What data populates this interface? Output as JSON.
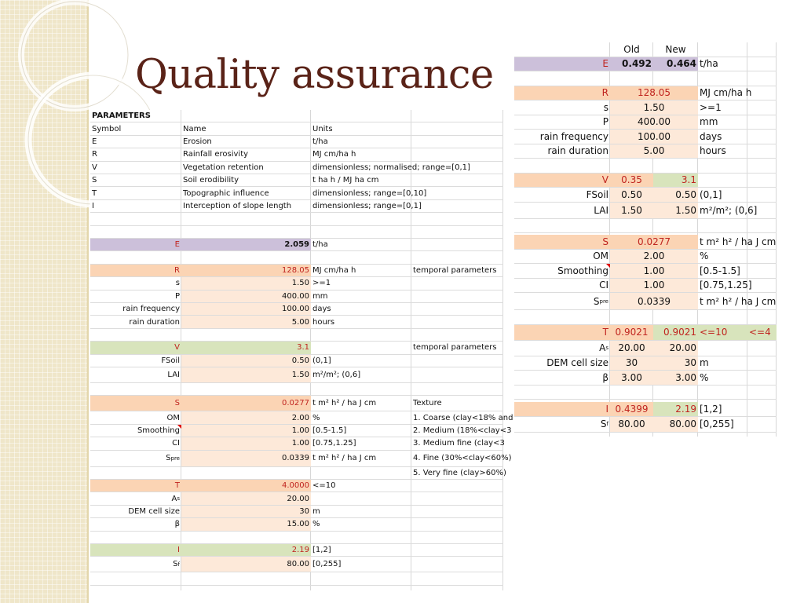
{
  "slide": {
    "title": "Quality assurance"
  },
  "left_table": {
    "header": "PARAMETERS",
    "col_headers": [
      "Symbol",
      "Name",
      "Units"
    ],
    "definitions": [
      {
        "symbol": "E",
        "name": "Erosion",
        "units": "t/ha"
      },
      {
        "symbol": "R",
        "name": "Rainfall erosivity",
        "units": "MJ cm/ha h"
      },
      {
        "symbol": "V",
        "name": "Vegetation retention",
        "units": "dimensionless; normalised; range=[0,1]"
      },
      {
        "symbol": "S",
        "name": "Soil erodibility",
        "units": "t ha h / MJ ha cm"
      },
      {
        "symbol": "T",
        "name": "Topographic influence",
        "units": "dimensionless; range=[0,10]"
      },
      {
        "symbol": "I",
        "name": "Interception of slope length",
        "units": "dimensionless; range=[0,1]"
      }
    ],
    "E": {
      "label": "E",
      "value": "2.059",
      "unit": "t/ha"
    },
    "R": {
      "label": "R",
      "value": "128.05",
      "unit": "MJ cm/ha h",
      "note": "temporal parameters",
      "params": [
        {
          "label": "s",
          "value": "1.50",
          "unit": ">=1"
        },
        {
          "label": "P",
          "value": "400.00",
          "unit": "mm"
        },
        {
          "label": "rain frequency",
          "value": "100.00",
          "unit": "days"
        },
        {
          "label": "rain duration",
          "value": "5.00",
          "unit": "hours"
        }
      ]
    },
    "V": {
      "label": "V",
      "value": "3.1",
      "note": "temporal parameters",
      "params": [
        {
          "label": "FSoil",
          "value": "0.50",
          "unit": "(0,1]"
        },
        {
          "label": "LAI",
          "value": "1.50",
          "unit": "m²/m²; (0,6]"
        }
      ]
    },
    "S": {
      "label": "S",
      "value": "0.0277",
      "unit": "t m² h² / ha J cm",
      "note": "Texture",
      "params": [
        {
          "label": "OM",
          "value": "2.00",
          "unit": "%",
          "note": "1. Coarse (clay<18% and"
        },
        {
          "label": "Smoothing",
          "value": "1.00",
          "unit": "[0.5-1.5]",
          "note": "2. Medium (18%<clay<3"
        },
        {
          "label": "CI",
          "value": "1.00",
          "unit": "[0.75,1.25]",
          "note": "3. Medium fine (clay<3"
        },
        {
          "label": "S",
          "label_sub": "pre",
          "value": "0.0339",
          "unit": "t m² h² / ha J cm",
          "note": "4. Fine (30%<clay<60%)"
        }
      ],
      "extra_note": "5. Very fine (clay>60%)"
    },
    "T": {
      "label": "T",
      "value": "4.0000",
      "unit": "<=10",
      "params": [
        {
          "label": "A",
          "label_sub": "s",
          "value": "20.00",
          "unit": ""
        },
        {
          "label": "DEM cell size",
          "value": "30",
          "unit": "m"
        },
        {
          "label": "β",
          "value": "15.00",
          "unit": "%"
        }
      ]
    },
    "I": {
      "label": "I",
      "value": "2.19",
      "unit": "[1,2]",
      "params": [
        {
          "label": "S",
          "label_sub": "f",
          "value": "80.00",
          "unit": "[0,255]"
        }
      ]
    }
  },
  "right_table": {
    "col_headers": {
      "old": "Old",
      "new": "New"
    },
    "rows": {
      "E": {
        "label": "E",
        "old": "0.492",
        "new": "0.464",
        "unit": "t/ha"
      },
      "R": {
        "label": "R",
        "old": "128.05",
        "unit": "MJ cm/ha h"
      },
      "s": {
        "label": "s",
        "old": "1.50",
        "unit": ">=1"
      },
      "P": {
        "label": "P",
        "old": "400.00",
        "unit": "mm"
      },
      "rain_frequency": {
        "label": "rain frequency",
        "old": "100.00",
        "unit": "days"
      },
      "rain_duration": {
        "label": "rain duration",
        "old": "5.00",
        "unit": "hours"
      },
      "V": {
        "label": "V",
        "old": "0.35",
        "new": "3.1"
      },
      "FSoil": {
        "label": "FSoil",
        "old": "0.50",
        "new": "0.50",
        "unit": "(0,1]"
      },
      "LAI": {
        "label": "LAI",
        "old": "1.50",
        "new": "1.50",
        "unit": "m²/m²; (0,6]"
      },
      "S": {
        "label": "S",
        "old": "0.0277",
        "unit": "t m² h² / ha J cm"
      },
      "OM": {
        "label": "OM",
        "old": "2.00",
        "unit": "%"
      },
      "Smoothing": {
        "label": "Smoothing",
        "old": "1.00",
        "unit": "[0.5-1.5]"
      },
      "CI": {
        "label": "CI",
        "old": "1.00",
        "unit": "[0.75,1.25]"
      },
      "Spre": {
        "label": "S",
        "label_sub": "pre",
        "old": "0.0339",
        "unit": "t m² h² / ha J cm"
      },
      "T": {
        "label": "T",
        "old": "0.9021",
        "new": "0.9021",
        "unit": "<=10",
        "extra": "<=4"
      },
      "As": {
        "label": "A",
        "label_sub": "s",
        "old": "20.00",
        "new": "20.00"
      },
      "DEM": {
        "label": "DEM cell size",
        "old": "30",
        "new": "30",
        "unit": "m"
      },
      "beta": {
        "label": "β",
        "old": "3.00",
        "new": "3.00",
        "unit": "%"
      },
      "I": {
        "label": "I",
        "old": "0.4399",
        "new": "2.19",
        "unit": "[1,2]"
      },
      "Sf": {
        "label": "S",
        "label_sub": "f",
        "old": "80.00",
        "new": "80.00",
        "unit": "[0,255]"
      }
    }
  }
}
